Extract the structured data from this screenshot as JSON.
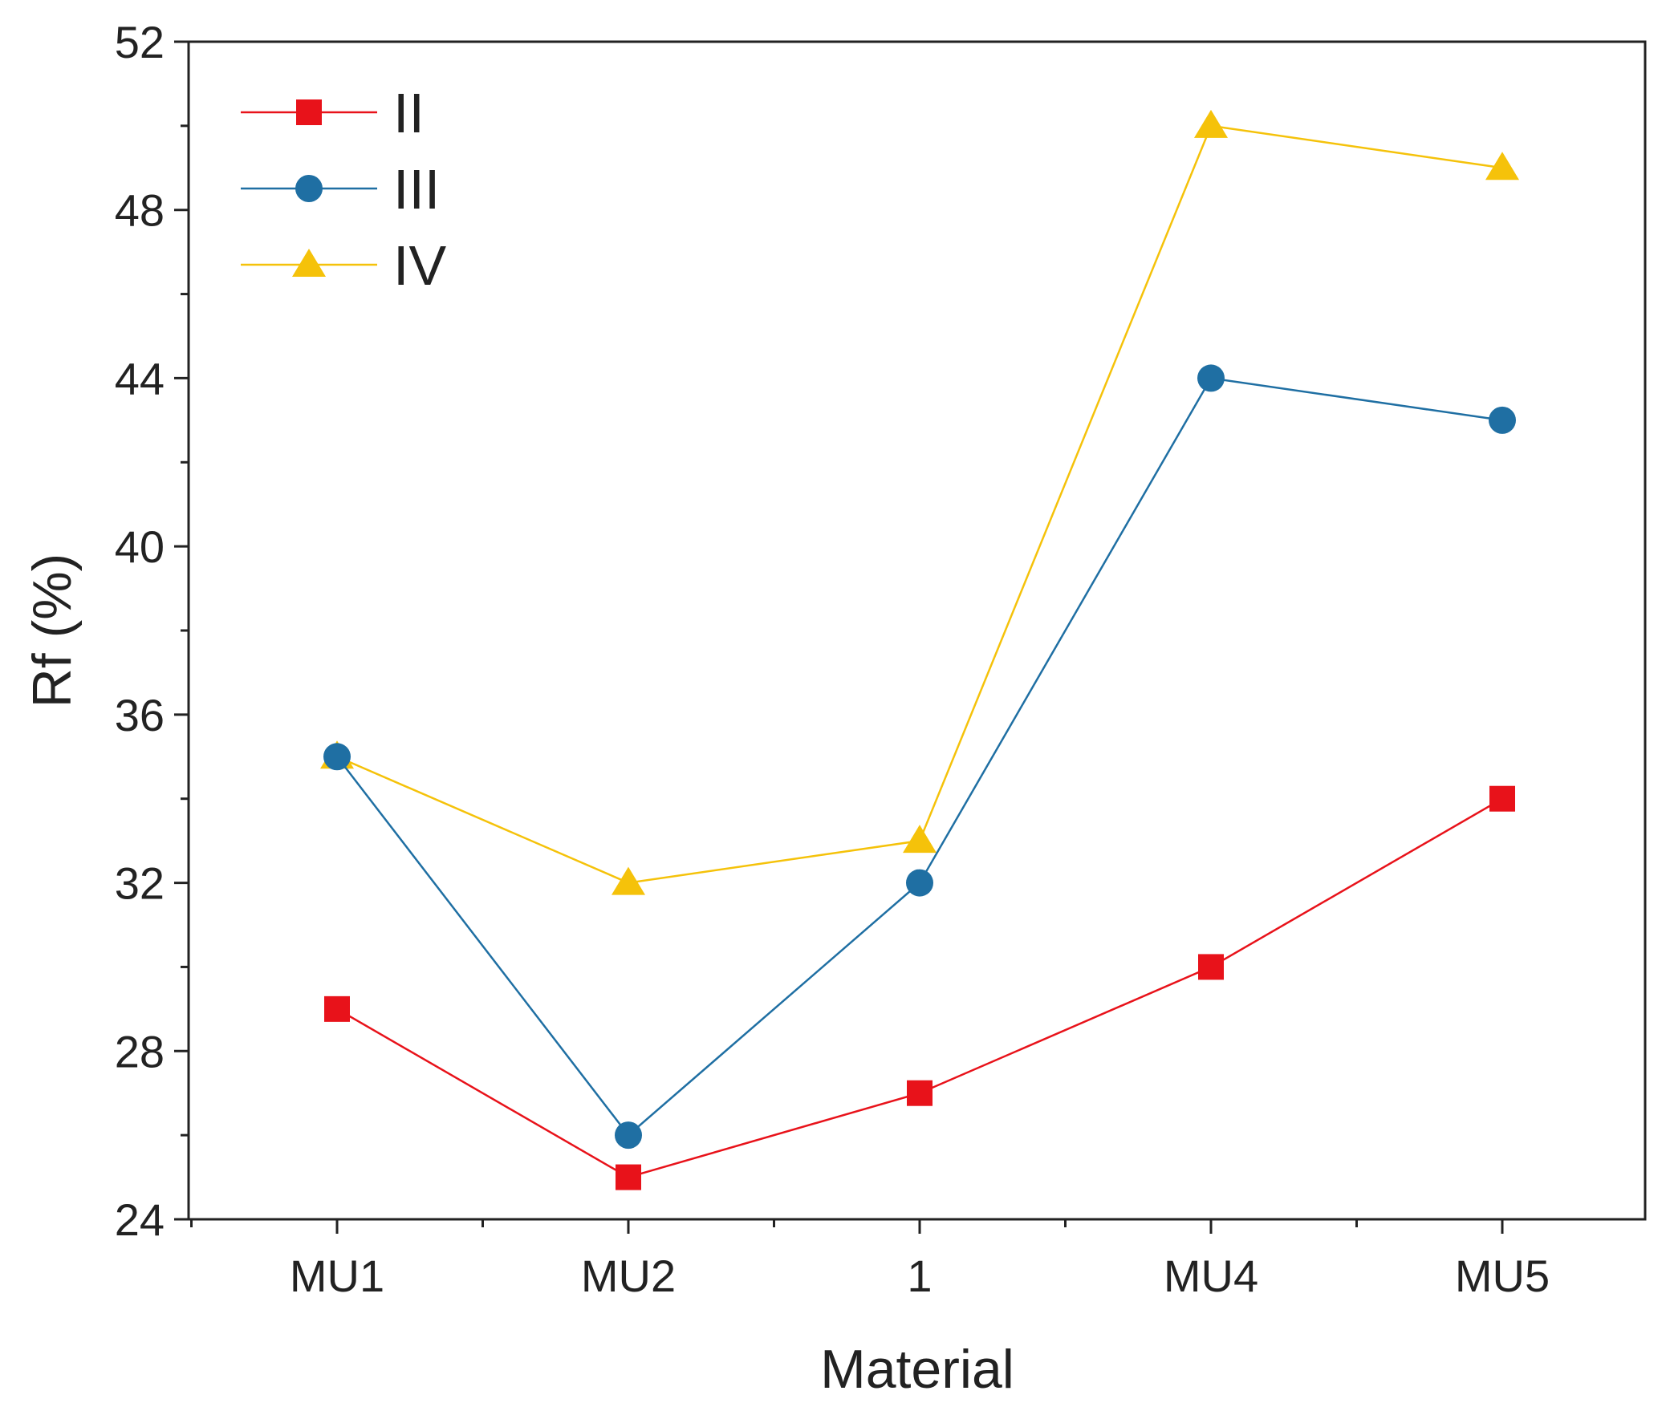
{
  "chart_data": {
    "type": "line",
    "title": "",
    "xlabel": "Material",
    "ylabel": "Rf (%)",
    "categories": [
      "MU1",
      "MU2",
      "1",
      "MU4",
      "MU5"
    ],
    "ylim": [
      24,
      52
    ],
    "yticks": [
      24,
      28,
      32,
      36,
      40,
      44,
      48,
      52
    ],
    "legend_position": "top-left",
    "grid": false,
    "series": [
      {
        "name": "II",
        "color": "#e8121a",
        "marker": "square",
        "values": [
          29,
          25,
          27,
          30,
          34
        ]
      },
      {
        "name": "III",
        "color": "#1f6fa3",
        "marker": "circle",
        "values": [
          35,
          26,
          32,
          44,
          43
        ]
      },
      {
        "name": "IV",
        "color": "#f5c20a",
        "marker": "triangle",
        "values": [
          35,
          32,
          33,
          50,
          49
        ]
      }
    ]
  }
}
